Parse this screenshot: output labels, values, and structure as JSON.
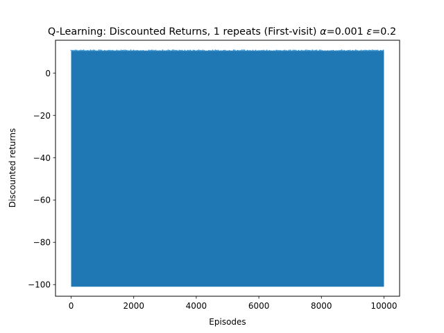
{
  "chart_data": {
    "type": "line",
    "title_text": "Q-Learning: Discounted Returns, 1 repeats (First-visit) ",
    "title_alpha_symbol": "α",
    "title_alpha_value": "=0.001 ",
    "title_epsilon_symbol": "ε",
    "title_epsilon_value": "=0.2",
    "xlabel": "Episodes",
    "ylabel": "Discounted returns",
    "xlim": [
      -500,
      10500
    ],
    "ylim": [
      -105.5,
      15.5
    ],
    "xticks": [
      0,
      2000,
      4000,
      6000,
      8000,
      10000
    ],
    "xtick_labels": [
      "0",
      "2000",
      "4000",
      "6000",
      "8000",
      "10000"
    ],
    "yticks": [
      0,
      -20,
      -40,
      -60,
      -80,
      -100
    ],
    "ytick_labels": [
      "0",
      "−20",
      "−40",
      "−60",
      "−80",
      "−100"
    ],
    "series": [
      {
        "color": "#1f77b4",
        "x_range": [
          0,
          10000
        ],
        "y_min": -101,
        "y_max": 10.5
      }
    ],
    "grid": false,
    "legend": "none"
  }
}
